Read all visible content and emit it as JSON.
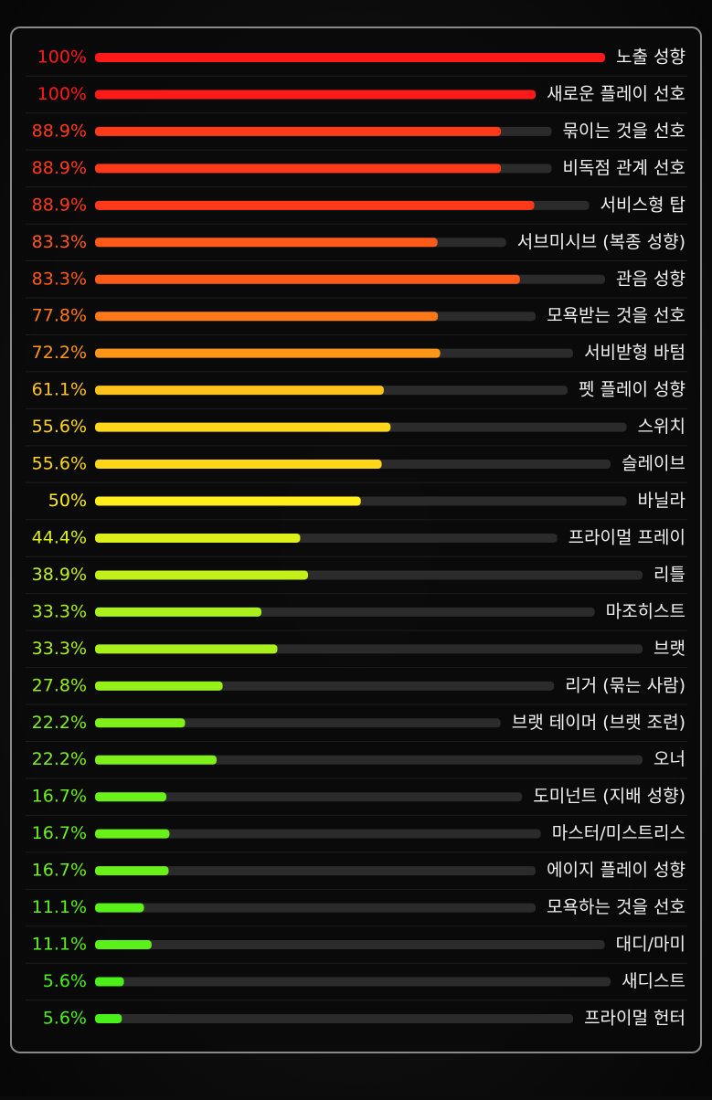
{
  "chart_data": {
    "type": "hbar",
    "categories": [
      "노출 성향",
      "새로운 플레이 선호",
      "묶이는 것을 선호",
      "비독점 관계 선호",
      "서비스형 탑",
      "서브미시브 (복종 성향)",
      "관음 성향",
      "모욕받는 것을 선호",
      "서비받형 바텀",
      "펫 플레이 성향",
      "스위치",
      "슬레이브",
      "바닐라",
      "프라이멀 프레이",
      "리틀",
      "마조히스트",
      "브랫",
      "리거 (묶는 사람)",
      "브랫 테이머 (브랫 조련)",
      "오너",
      "도미넌트 (지배 성향)",
      "마스터/미스트리스",
      "에이지 플레이 성향",
      "모욕하는 것을 선호",
      "대디/마미",
      "새디스트",
      "프라이멀 헌터"
    ],
    "values": [
      100,
      100,
      88.9,
      88.9,
      88.9,
      83.3,
      83.3,
      77.8,
      72.2,
      61.1,
      55.6,
      55.6,
      50,
      44.4,
      38.9,
      33.3,
      33.3,
      27.8,
      22.2,
      22.2,
      16.7,
      16.7,
      16.7,
      11.1,
      11.1,
      5.6,
      5.6
    ],
    "value_labels": [
      "100%",
      "100%",
      "88.9%",
      "88.9%",
      "88.9%",
      "83.3%",
      "83.3%",
      "77.8%",
      "72.2%",
      "61.1%",
      "55.6%",
      "55.6%",
      "50%",
      "44.4%",
      "38.9%",
      "33.3%",
      "33.3%",
      "27.8%",
      "22.2%",
      "22.2%",
      "16.7%",
      "16.7%",
      "16.7%",
      "11.1%",
      "11.1%",
      "5.6%",
      "5.6%"
    ],
    "colors": [
      "#ff1a1a",
      "#ff1a1a",
      "#ff3a1a",
      "#ff3a1a",
      "#ff3a1a",
      "#ff5a1a",
      "#ff5a1a",
      "#ff781a",
      "#ff961a",
      "#ffc21a",
      "#ffd61a",
      "#ffd61a",
      "#ffee1a",
      "#ddf01a",
      "#c4f01a",
      "#aaf01a",
      "#aaf01a",
      "#96f01a",
      "#80f01a",
      "#80f01a",
      "#6af01a",
      "#6af01a",
      "#6af01a",
      "#5af01a",
      "#5af01a",
      "#4af01a",
      "#4af01a"
    ],
    "xlim": [
      0,
      100
    ]
  }
}
